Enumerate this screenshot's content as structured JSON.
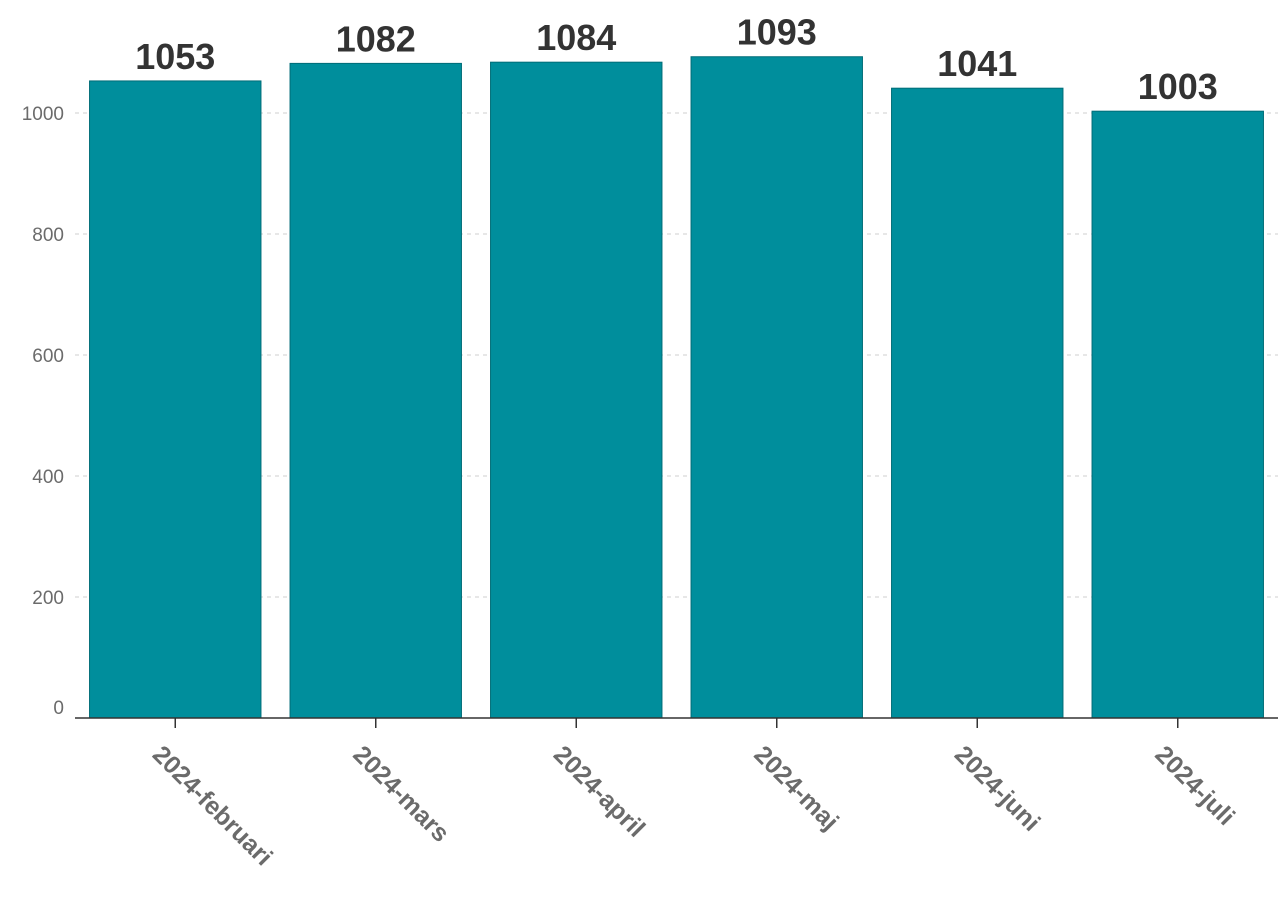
{
  "chart_data": {
    "type": "bar",
    "categories": [
      "2024-februari",
      "2024-mars",
      "2024-april",
      "2024-maj",
      "2024-juni",
      "2024-juli"
    ],
    "values": [
      1053,
      1082,
      1084,
      1093,
      1041,
      1003
    ],
    "title": "",
    "xlabel": "",
    "ylabel": "",
    "ylim": [
      0,
      1100
    ],
    "yticks": [
      0,
      200,
      400,
      600,
      800,
      1000
    ],
    "grid": true,
    "bar_color": "#008E9C",
    "bar_edge_color": "#006d78"
  }
}
